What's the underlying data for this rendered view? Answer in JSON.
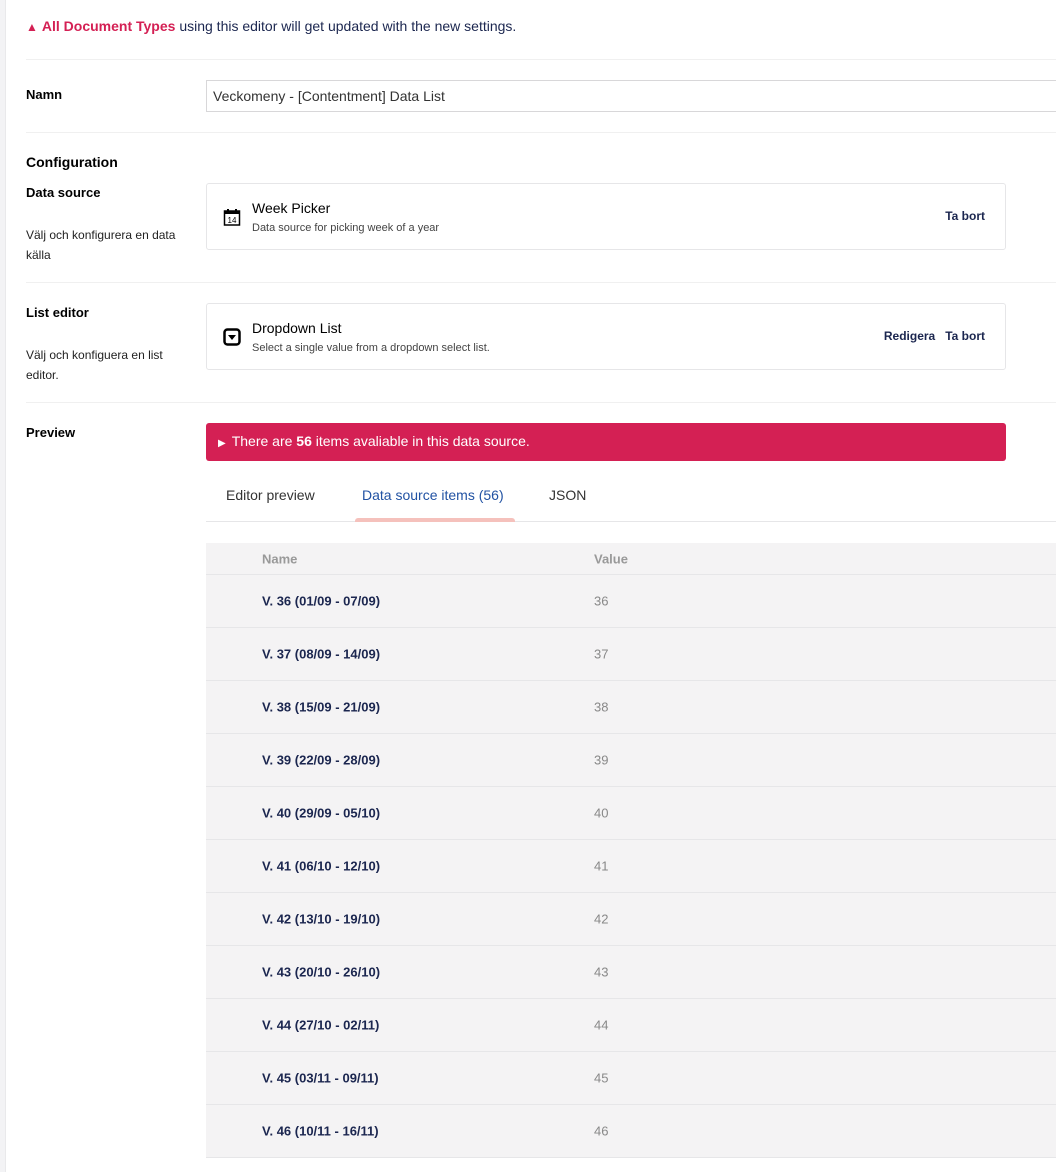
{
  "warning": {
    "highlight": "All Document Types",
    "text": " using this editor will get updated with the new settings."
  },
  "name": {
    "label": "Namn",
    "value": "Veckomeny - [Contentment] Data List"
  },
  "configuration": {
    "heading": "Configuration"
  },
  "data_source": {
    "label": "Data source",
    "description": "Välj och konfigurera en data källa",
    "title": "Week Picker",
    "subtitle": "Data source for picking week of a year",
    "icon": "calendar-icon",
    "remove": "Ta bort"
  },
  "list_editor": {
    "label": "List editor",
    "description": "Välj och konfiguera en list editor.",
    "title": "Dropdown List",
    "subtitle": "Select a single value from a dropdown select list.",
    "icon": "dropdown-icon",
    "edit": "Redigera",
    "remove": "Ta bort"
  },
  "preview": {
    "label": "Preview",
    "banner_pre": "There are ",
    "banner_count": "56",
    "banner_post": " items avaliable in this data source.",
    "banner_color": "#d42054",
    "tabs": [
      {
        "label": "Editor preview"
      },
      {
        "label": "Data source items (56)",
        "active": true
      },
      {
        "label": "JSON"
      }
    ],
    "columns": [
      "Name",
      "Value"
    ],
    "rows": [
      {
        "name": "V. 36 (01/09 - 07/09)",
        "value": "36"
      },
      {
        "name": "V. 37 (08/09 - 14/09)",
        "value": "37"
      },
      {
        "name": "V. 38 (15/09 - 21/09)",
        "value": "38"
      },
      {
        "name": "V. 39 (22/09 - 28/09)",
        "value": "39"
      },
      {
        "name": "V. 40 (29/09 - 05/10)",
        "value": "40"
      },
      {
        "name": "V. 41 (06/10 - 12/10)",
        "value": "41"
      },
      {
        "name": "V. 42 (13/10 - 19/10)",
        "value": "42"
      },
      {
        "name": "V. 43 (20/10 - 26/10)",
        "value": "43"
      },
      {
        "name": "V. 44 (27/10 - 02/11)",
        "value": "44"
      },
      {
        "name": "V. 45 (03/11 - 09/11)",
        "value": "45"
      },
      {
        "name": "V. 46 (10/11 - 16/11)",
        "value": "46"
      }
    ]
  }
}
